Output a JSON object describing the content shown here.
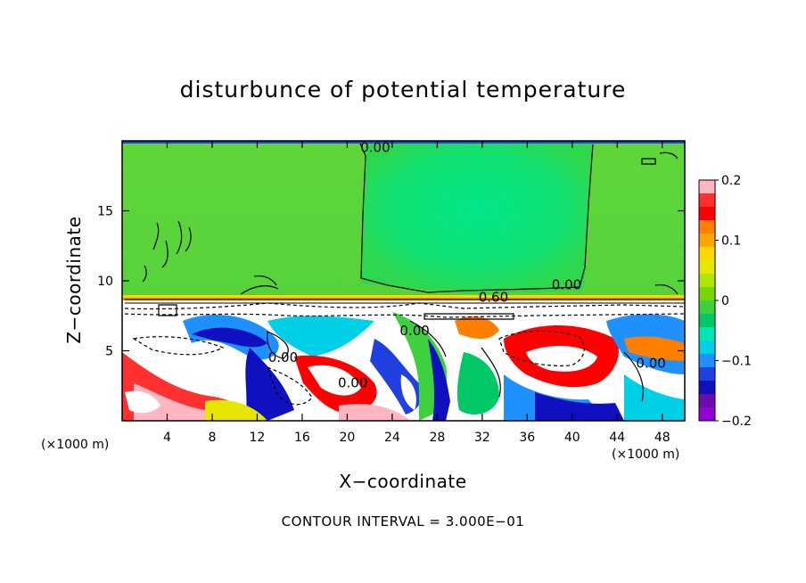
{
  "chart_data": {
    "type": "heatmap",
    "title": "disturbunce of potential temperature",
    "xlabel": "X−coordinate",
    "ylabel": "Z−coordinate",
    "x_unit": "(×1000 m)",
    "x_unit_right": "(×1000 m)",
    "footer": "CONTOUR INTERVAL = 3.000E−01",
    "xlim": [
      0,
      50
    ],
    "ylim": [
      0,
      20
    ],
    "xticks": [
      4,
      8,
      12,
      16,
      20,
      24,
      28,
      32,
      36,
      40,
      44,
      48
    ],
    "yticks": [
      5,
      10,
      15
    ],
    "colorbar": {
      "range": [
        -0.2,
        0.2
      ],
      "tick_values": [
        0.2,
        0.1,
        0,
        -0.1,
        -0.2
      ],
      "tick_labels": [
        "0.2",
        "0.1",
        "0",
        "−0.1",
        "−0.2"
      ],
      "colors": [
        "#ffb6c1",
        "#ff3030",
        "#ff0000",
        "#ff7f00",
        "#ffa500",
        "#ffd700",
        "#e6e600",
        "#aee600",
        "#7ad600",
        "#3ed03e",
        "#00c866",
        "#00e6b4",
        "#00d0e6",
        "#1e90ff",
        "#2040e0",
        "#1010c0",
        "#6a0dad",
        "#9400d3"
      ]
    },
    "contour_labels": [
      "0.00",
      "0.00",
      "0.60",
      "0.00",
      "0.00",
      "0.00",
      "0.00"
    ],
    "layers": {
      "upper_value": 0.02,
      "upper_center_value": -0.02,
      "inversion_height": 8.7
    }
  }
}
